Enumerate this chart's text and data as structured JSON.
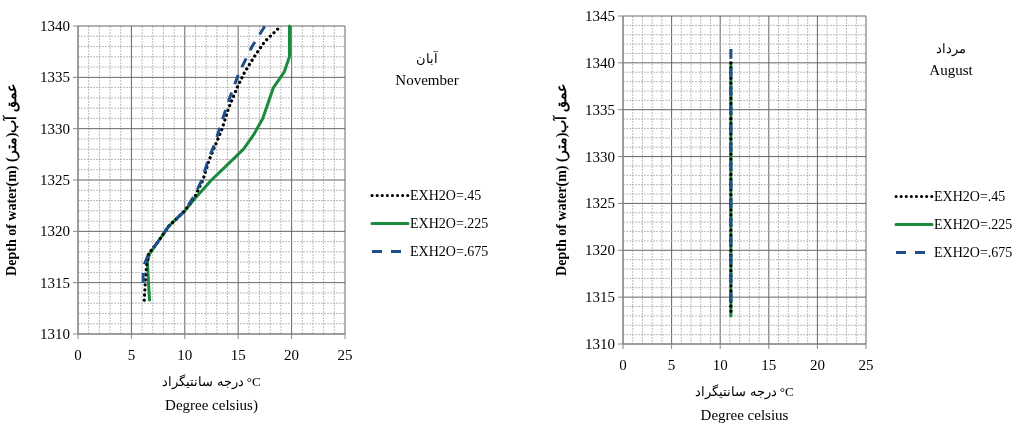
{
  "chart_data": [
    {
      "type": "line",
      "ylabel": "Depth of water(m) عمق آب(متر)",
      "xlabel": "درجه سانتیگراد °C",
      "annotations": [
        "آبان",
        "November",
        "Degree celsius)"
      ],
      "xlim": [
        0,
        25
      ],
      "xticks": [
        0,
        5,
        10,
        15,
        20,
        25
      ],
      "ylim": [
        1310,
        1340
      ],
      "yticks": [
        1310,
        1315,
        1320,
        1325,
        1330,
        1335,
        1340
      ],
      "grid": true,
      "legend": "right",
      "series": [
        {
          "name": "EXH2O=.45",
          "color": "#000000",
          "line_style": "dotted",
          "x": [
            6.2,
            6.3,
            6.4,
            6.6,
            7.5,
            8.5,
            10,
            11,
            11.7,
            12.3,
            12.9,
            13.5,
            14.1,
            14.9,
            15.6,
            16.5,
            17.5,
            18.7
          ],
          "values": [
            1313.3,
            1315,
            1316.5,
            1317.8,
            1319,
            1320.5,
            1322,
            1323.5,
            1325,
            1327,
            1328.5,
            1330,
            1332,
            1334,
            1335.5,
            1337,
            1338.5,
            1339.7
          ]
        },
        {
          "name": "EXH2O=.225",
          "color": "#1b8a3c",
          "line_style": "solid",
          "x": [
            6.7,
            6.6,
            6.5,
            6.7,
            7.5,
            8.5,
            10,
            11.2,
            12.5,
            14,
            15.5,
            16.5,
            17.3,
            17.8,
            18.3,
            19.3,
            19.8,
            19.8,
            19.8
          ],
          "values": [
            1313.3,
            1315,
            1317,
            1317.8,
            1319,
            1320.5,
            1322,
            1323.5,
            1325,
            1326.5,
            1328,
            1329.5,
            1331,
            1332.5,
            1334,
            1335.5,
            1337,
            1338.5,
            1340
          ]
        },
        {
          "name": "EXH2O=.675",
          "color": "#1f4e8c",
          "line_style": "dashed",
          "x": [
            6.1,
            6.1,
            6.6,
            7.5,
            8.5,
            10,
            10.9,
            11.6,
            12.2,
            12.8,
            13.4,
            14.2,
            15.1,
            16.3,
            17.5
          ],
          "values": [
            1315,
            1316.5,
            1317.8,
            1319,
            1320.5,
            1322,
            1323.5,
            1325,
            1327,
            1328.5,
            1330.5,
            1333,
            1335.5,
            1338,
            1340
          ]
        }
      ]
    },
    {
      "type": "line",
      "ylabel": "Depth of water(m) عمق آب(متر)",
      "xlabel": "درجه سانتیگراد °C",
      "annotations": [
        "مرداد",
        "August",
        "Degree celsius"
      ],
      "xlim": [
        0,
        25
      ],
      "xticks": [
        0,
        5,
        10,
        15,
        20,
        25
      ],
      "ylim": [
        1310,
        1345
      ],
      "yticks": [
        1310,
        1315,
        1320,
        1325,
        1330,
        1335,
        1340,
        1345
      ],
      "grid": true,
      "legend": "right",
      "series": [
        {
          "name": "EXH2O=.45",
          "color": "#000000",
          "line_style": "dotted",
          "x": [
            11.1,
            11.1
          ],
          "values": [
            1313.5,
            1340
          ]
        },
        {
          "name": "EXH2O=.225",
          "color": "#1b8a3c",
          "line_style": "solid",
          "x": [
            11.1,
            11.1
          ],
          "values": [
            1313,
            1340
          ]
        },
        {
          "name": "EXH2O=.675",
          "color": "#1f4e8c",
          "line_style": "dashed",
          "x": [
            11.1,
            11.1
          ],
          "values": [
            1314.5,
            1341.5
          ]
        }
      ]
    }
  ]
}
